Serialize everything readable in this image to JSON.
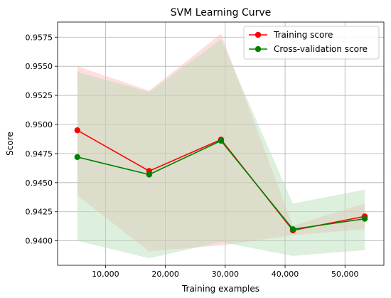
{
  "chart_data": {
    "type": "line",
    "title": "SVM Learning Curve",
    "xlabel": "Training examples",
    "ylabel": "Score",
    "xlim": [
      2000,
      56500
    ],
    "ylim": [
      0.9379,
      0.9588
    ],
    "x_ticks": [
      10000,
      20000,
      30000,
      40000,
      50000
    ],
    "x_tick_labels": [
      "10,000",
      "20,000",
      "30,000",
      "40,000",
      "50,000"
    ],
    "y_ticks": [
      0.94,
      0.9425,
      0.945,
      0.9475,
      0.95,
      0.9525,
      0.955,
      0.9575
    ],
    "y_tick_labels": [
      "0.9400",
      "0.9425",
      "0.9450",
      "0.9475",
      "0.9500",
      "0.9525",
      "0.9550",
      "0.9575"
    ],
    "grid": true,
    "legend_position": "top-right",
    "x": [
      5300,
      17300,
      29300,
      41300,
      53300
    ],
    "series": [
      {
        "name": "Training score",
        "color": "#ff0000",
        "band_color": "#ffb6b6",
        "values": [
          0.9495,
          0.946,
          0.9487,
          0.9409,
          0.9421
        ],
        "band_upper": [
          0.955,
          0.9529,
          0.9578,
          0.9413,
          0.9432
        ],
        "band_lower": [
          0.9439,
          0.9391,
          0.9396,
          0.9405,
          0.941
        ]
      },
      {
        "name": "Cross-validation score",
        "color": "#008000",
        "band_color": "#b3dcb3",
        "values": [
          0.9472,
          0.9457,
          0.9486,
          0.941,
          0.9419
        ],
        "band_upper": [
          0.9545,
          0.9528,
          0.9573,
          0.9432,
          0.9444
        ],
        "band_lower": [
          0.94,
          0.9385,
          0.9399,
          0.9387,
          0.9392
        ]
      }
    ]
  }
}
